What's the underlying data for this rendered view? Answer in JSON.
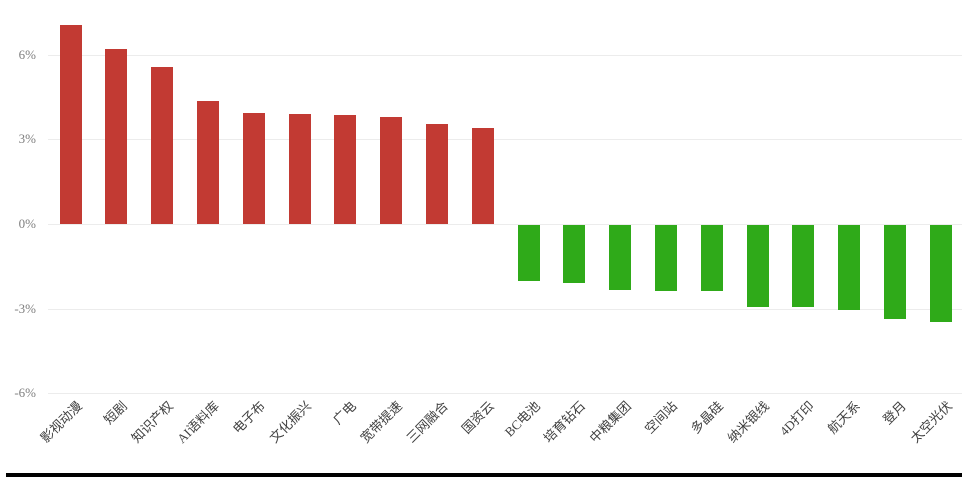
{
  "page": {
    "background_color": "#ffffff",
    "bottom_rule_color": "#000000"
  },
  "chart_data": {
    "type": "bar",
    "title": "",
    "categories": [
      "影视动漫",
      "短剧",
      "知识产权",
      "AI语料库",
      "电子布",
      "文化振兴",
      "广电",
      "宽带提速",
      "三网融合",
      "国资云",
      "BC电池",
      "培育钻石",
      "中粮集团",
      "空间站",
      "多晶硅",
      "纳米银线",
      "4D打印",
      "航天系",
      "登月",
      "太空光伏"
    ],
    "values": [
      7.05,
      6.2,
      5.55,
      4.35,
      3.95,
      3.9,
      3.85,
      3.8,
      3.55,
      3.4,
      -2.0,
      -2.05,
      -2.3,
      -2.35,
      -2.35,
      -2.9,
      -2.9,
      -3.0,
      -3.35,
      -3.45
    ],
    "value_unit": "%",
    "xlabel": "",
    "ylabel": "",
    "ytick_labels": [
      "6%",
      "3%",
      "0%",
      "-3%",
      "-6%"
    ],
    "ytick_values": [
      6,
      3,
      0,
      -3,
      -6
    ],
    "ylim": [
      -6,
      8
    ],
    "grid": true,
    "legend": "none",
    "x_label_rotation_deg": 45,
    "colors": {
      "positive_bar": "#c23a33",
      "negative_bar": "#2faa19",
      "gridline": "#ececec",
      "y_tick_label": "#7f7f7f",
      "category_label": "#404040"
    }
  }
}
